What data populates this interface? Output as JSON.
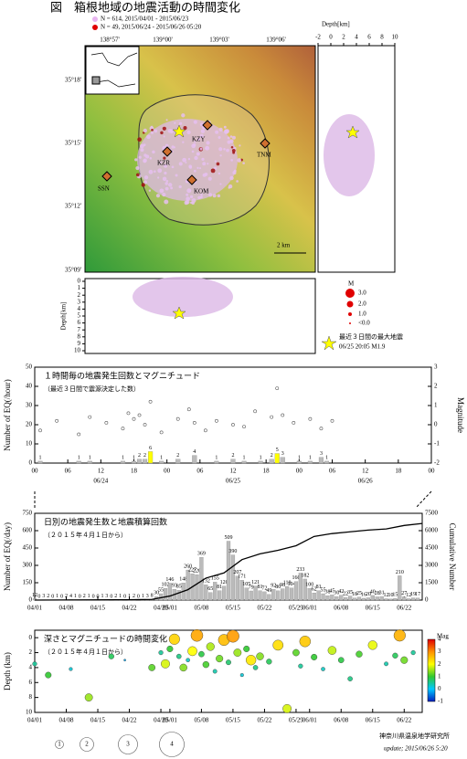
{
  "header": {
    "title": "図　箱根地域の地震活動の時間変化",
    "legend": [
      "N = 614, 2015/04/01 - 2015/06/23",
      "N = 49, 2015/06/24 - 2015/06/26 05:20"
    ]
  },
  "map": {
    "lon_labels": [
      "138°57'",
      "139°00'",
      "139°03'",
      "139°06'"
    ],
    "lat_labels": [
      "35°18'",
      "35°15'",
      "35°12'",
      "35°09'"
    ],
    "stations": [
      "KZY",
      "KZR",
      "TNM",
      "SSN",
      "KOM"
    ],
    "scale": "2 km",
    "depth_label": "Depth[km]",
    "depth_ticks": [
      -2,
      0,
      2,
      4,
      6,
      8,
      10
    ],
    "section_depth_ticks": [
      0,
      1,
      2,
      3,
      4,
      5,
      6,
      7,
      8,
      9,
      10
    ],
    "mag_legend": {
      "title": "M",
      "labels": [
        "3.0",
        "2.0",
        "1.0",
        "<0.0"
      ]
    },
    "star_legend": [
      "最近３日間の最大地震",
      "06/25 20:05 M1.9"
    ]
  },
  "chart_data": [
    {
      "type": "bar",
      "title": "１時間毎の地震発生回数とマグニチュード",
      "subtitle": "（最近３日間で震源決定した数）",
      "y_label": "Number of EQ(/hour)",
      "y2_label": "Magnitude",
      "xlim": [
        0,
        72
      ],
      "xticks": [
        {
          "value": 0,
          "label": "00"
        },
        {
          "value": 6,
          "label": "06"
        },
        {
          "value": 12,
          "label": "12"
        },
        {
          "value": 18,
          "label": "18"
        },
        {
          "value": 24,
          "label": "00"
        },
        {
          "value": 30,
          "label": "06"
        },
        {
          "value": 36,
          "label": "12"
        },
        {
          "value": 42,
          "label": "18"
        },
        {
          "value": 48,
          "label": "00"
        },
        {
          "value": 54,
          "label": "06"
        },
        {
          "value": 60,
          "label": "12"
        },
        {
          "value": 66,
          "label": "18"
        },
        {
          "value": 72,
          "label": "00"
        }
      ],
      "date_ticks": [
        {
          "value": 12,
          "label": "06/24"
        },
        {
          "value": 36,
          "label": "06/25"
        },
        {
          "value": 60,
          "label": "06/26"
        }
      ],
      "ylim": [
        0,
        50
      ],
      "yticks": [
        0,
        10,
        20,
        30,
        40,
        50
      ],
      "y2lim": [
        -2,
        3
      ],
      "y2ticks": [
        -2,
        -1,
        0,
        1,
        2,
        3
      ],
      "bars": {
        "x": [
          1,
          8,
          10,
          16,
          18,
          19,
          20,
          21,
          23,
          26,
          29,
          33,
          36,
          38,
          41,
          43,
          44,
          45,
          48,
          50,
          52,
          53
        ],
        "values": [
          1,
          1,
          1,
          1,
          1,
          2,
          2,
          6,
          1,
          2,
          4,
          1,
          2,
          1,
          1,
          2,
          5,
          3,
          1,
          1,
          3,
          1
        ],
        "colors": [
          "#bbbbbb",
          "#bbbbbb",
          "#bbbbbb",
          "#bbbbbb",
          "#bbbbbb",
          "#bbbbbb",
          "#bbbbbb",
          "#ffff00",
          "#bbbbbb",
          "#bbbbbb",
          "#bbbbbb",
          "#bbbbbb",
          "#bbbbbb",
          "#bbbbbb",
          "#bbbbbb",
          "#bbbbbb",
          "#ffff00",
          "#bbbbbb",
          "#bbbbbb",
          "#bbbbbb",
          "#bbbbbb",
          "#bbbbbb"
        ]
      },
      "points": {
        "axis": "y2",
        "x": [
          1,
          4,
          8,
          10,
          13,
          16,
          17,
          18,
          19,
          20,
          21,
          23,
          26,
          28,
          29,
          31,
          33,
          36,
          38,
          40,
          43,
          44,
          45,
          47,
          50,
          52,
          54
        ],
        "values": [
          -0.3,
          0.2,
          -0.5,
          0.4,
          0.1,
          -0.2,
          0.6,
          0.3,
          0.5,
          0.0,
          1.2,
          -0.4,
          0.3,
          0.8,
          0.1,
          -0.3,
          0.2,
          0.0,
          -0.1,
          0.7,
          0.4,
          1.9,
          0.5,
          0.1,
          0.3,
          -0.2,
          0.2
        ]
      }
    },
    {
      "type": "bar",
      "title": "日別の地震発生数と地震積算回数",
      "subtitle": "（２０１５年４月１日から）",
      "y_label": "Number of EQ(/day)",
      "y2_label": "Cumulative Number",
      "xlim": [
        0,
        86
      ],
      "xticks": [
        {
          "value": 0,
          "label": "04/01"
        },
        {
          "value": 7,
          "label": "04/08"
        },
        {
          "value": 14,
          "label": "04/15"
        },
        {
          "value": 21,
          "label": "04/22"
        },
        {
          "value": 28,
          "label": "04/29"
        },
        {
          "value": 30,
          "label": "05/01"
        },
        {
          "value": 37,
          "label": "05/08"
        },
        {
          "value": 44,
          "label": "05/15"
        },
        {
          "value": 51,
          "label": "05/22"
        },
        {
          "value": 58,
          "label": "05/29"
        },
        {
          "value": 61,
          "label": "06/01"
        },
        {
          "value": 68,
          "label": "06/08"
        },
        {
          "value": 75,
          "label": "06/15"
        },
        {
          "value": 82,
          "label": "06/22"
        }
      ],
      "ylim": [
        0,
        750
      ],
      "yticks": [
        0,
        150,
        300,
        450,
        600,
        750
      ],
      "y2lim": [
        0,
        7500
      ],
      "y2ticks": [
        0,
        1500,
        3000,
        4500,
        6000,
        7500
      ],
      "bars": {
        "color": "#bbbbbb",
        "x": [
          0,
          1,
          2,
          3,
          4,
          5,
          6,
          7,
          8,
          9,
          10,
          11,
          12,
          13,
          14,
          15,
          16,
          17,
          18,
          19,
          20,
          21,
          22,
          23,
          24,
          25,
          26,
          27,
          28,
          29,
          30,
          31,
          32,
          33,
          34,
          35,
          36,
          37,
          38,
          39,
          40,
          41,
          42,
          43,
          44,
          45,
          46,
          47,
          48,
          49,
          50,
          51,
          52,
          53,
          54,
          55,
          56,
          57,
          58,
          59,
          60,
          61,
          62,
          63,
          64,
          65,
          66,
          67,
          68,
          69,
          70,
          71,
          72,
          73,
          74,
          75,
          76,
          77,
          78,
          79,
          80,
          81,
          82,
          83,
          84,
          85
        ],
        "values": [
          12,
          0,
          3,
          2,
          0,
          1,
          0,
          2,
          4,
          1,
          0,
          2,
          1,
          0,
          0,
          1,
          3,
          0,
          2,
          1,
          0,
          1,
          2,
          0,
          1,
          3,
          8,
          30,
          55,
          102,
          146,
          93,
          85,
          148,
          260,
          227,
          220,
          369,
          132,
          65,
          155,
          81,
          120,
          509,
          390,
          207,
          171,
          105,
          79,
          121,
          81,
          72,
          49,
          92,
          80,
          98,
          118,
          104,
          160,
          233,
          182,
          100,
          62,
          81,
          55,
          38,
          45,
          30,
          42,
          22,
          35,
          18,
          25,
          16,
          20,
          40,
          28,
          31,
          12,
          10,
          15,
          210,
          27,
          12,
          19,
          17
        ]
      },
      "line": {
        "axis": "y2",
        "color": "#000000",
        "x": [
          0,
          20,
          26,
          30,
          34,
          38,
          42,
          46,
          50,
          54,
          58,
          62,
          66,
          70,
          74,
          78,
          82,
          86
        ],
        "values": [
          0,
          30,
          60,
          350,
          900,
          1900,
          2350,
          3500,
          4000,
          4300,
          4700,
          5500,
          5750,
          5900,
          6050,
          6150,
          6450,
          6620
        ]
      }
    },
    {
      "type": "scatter",
      "title": "深さとマグニチュードの時間変化",
      "subtitle": "（２０１５年４月１日から）",
      "y_label": "Depth (km)",
      "xlim": [
        0,
        86
      ],
      "xticks": [
        {
          "value": 0,
          "label": "04/01"
        },
        {
          "value": 7,
          "label": "04/08"
        },
        {
          "value": 14,
          "label": "04/15"
        },
        {
          "value": 21,
          "label": "04/22"
        },
        {
          "value": 28,
          "label": "04/29"
        },
        {
          "value": 30,
          "label": "05/01"
        },
        {
          "value": 37,
          "label": "05/08"
        },
        {
          "value": 44,
          "label": "05/15"
        },
        {
          "value": 51,
          "label": "05/22"
        },
        {
          "value": 58,
          "label": "05/29"
        },
        {
          "value": 61,
          "label": "06/01"
        },
        {
          "value": 68,
          "label": "06/08"
        },
        {
          "value": 75,
          "label": "06/15"
        },
        {
          "value": 82,
          "label": "06/22"
        }
      ],
      "ylim": [
        10,
        -1
      ],
      "yticks": [
        0,
        2,
        4,
        6,
        8,
        10
      ],
      "points": {
        "x": [
          0,
          3,
          8,
          12,
          17,
          20,
          26,
          28,
          29,
          30,
          31,
          32,
          33,
          34,
          35,
          36,
          37,
          38,
          39,
          40,
          41,
          42,
          43,
          44,
          45,
          46,
          47,
          48,
          49,
          50,
          52,
          54,
          56,
          58,
          59,
          60,
          62,
          64,
          66,
          68,
          70,
          72,
          75,
          78,
          80,
          81,
          82,
          84
        ],
        "y": [
          3.5,
          5,
          4.2,
          8,
          2.5,
          3,
          4,
          2,
          3.5,
          1.5,
          0.2,
          2.5,
          4,
          3,
          1.8,
          -0.3,
          2.2,
          3.6,
          1.2,
          4.5,
          2.8,
          0.3,
          3.3,
          -0.2,
          2,
          5,
          1.5,
          3,
          4,
          2.5,
          3.2,
          1,
          9.5,
          2,
          3.8,
          0.5,
          2.6,
          4.2,
          1.7,
          3,
          5.5,
          2.2,
          1,
          3.5,
          2.4,
          -0.3,
          3,
          2
        ],
        "mag": [
          0.5,
          1,
          0.2,
          1.5,
          0.8,
          -0.2,
          1.2,
          0.5,
          1.8,
          1,
          2.4,
          0.6,
          1.4,
          0.3,
          2,
          2.8,
          0.9,
          1.1,
          1.6,
          0.4,
          1.3,
          2.6,
          0.7,
          2.9,
          1.5,
          0.2,
          1,
          2.2,
          0.6,
          1.4,
          0.8,
          2.3,
          1.8,
          1.2,
          0.5,
          2.5,
          1,
          0.3,
          1.7,
          0.9,
          0.6,
          1.1,
          1.9,
          0.4,
          0.8,
          2.7,
          1.3,
          0.5
        ]
      },
      "colorbar": {
        "title": "Mag",
        "lim": [
          -1,
          4
        ],
        "ticks": [
          4,
          3,
          2,
          1,
          0,
          -1
        ]
      },
      "size_legend": [
        1,
        2,
        3,
        4
      ]
    }
  ],
  "footer": {
    "institute": "神奈川県温泉地学研究所",
    "update": "update; 2015/06/26 5:20"
  }
}
